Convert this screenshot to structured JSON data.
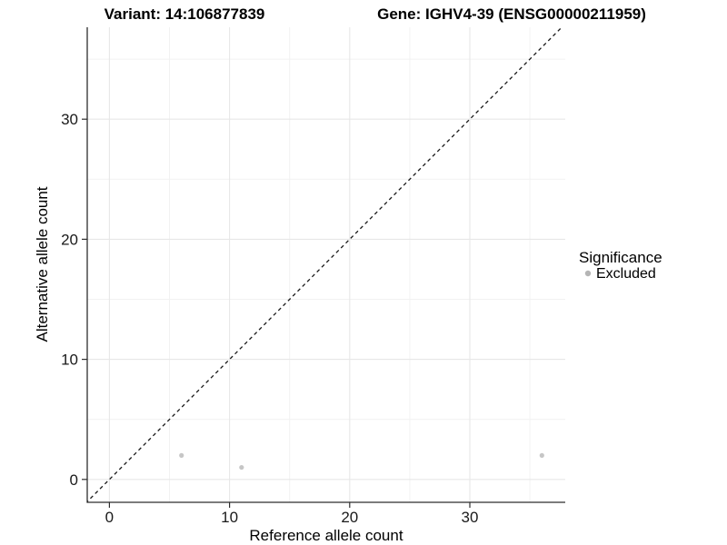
{
  "header": {
    "title_left": "Variant: 14:106877839",
    "title_right": "Gene: IGHV4-39 (ENSG00000211959)"
  },
  "chart_data": {
    "type": "scatter",
    "xlabel": "Reference allele count",
    "ylabel": "Alternative allele count",
    "x_ticks": [
      0,
      10,
      20,
      30
    ],
    "x_minor_ticks": [
      5,
      15,
      25,
      35
    ],
    "y_ticks": [
      0,
      10,
      20,
      30
    ],
    "y_minor_ticks": [
      5,
      15,
      25,
      35
    ],
    "xlim": [
      -1.8,
      38
    ],
    "ylim": [
      -1.9,
      37.7
    ],
    "grid": "on",
    "series": [
      {
        "name": "Excluded",
        "color": "#c6c6c6",
        "points": [
          {
            "x": 6,
            "y": 2
          },
          {
            "x": 11,
            "y": 1
          },
          {
            "x": 36,
            "y": 2
          }
        ]
      }
    ],
    "identity_line": {
      "slope": 1,
      "intercept": 0,
      "style": "dashed",
      "color": "#1a1a1a"
    },
    "legend": {
      "position": "right",
      "title": "Significance",
      "items": [
        {
          "label": "Excluded",
          "color": "#b5b5b5"
        }
      ]
    },
    "colors": {
      "point": "#c6c6c6",
      "legend_key": "#b5b5b5",
      "axis_line": "#2e2e2e",
      "grid_major": "#e7e7e7",
      "grid_minor": "#f2f2f2",
      "background": "#ffffff"
    }
  }
}
